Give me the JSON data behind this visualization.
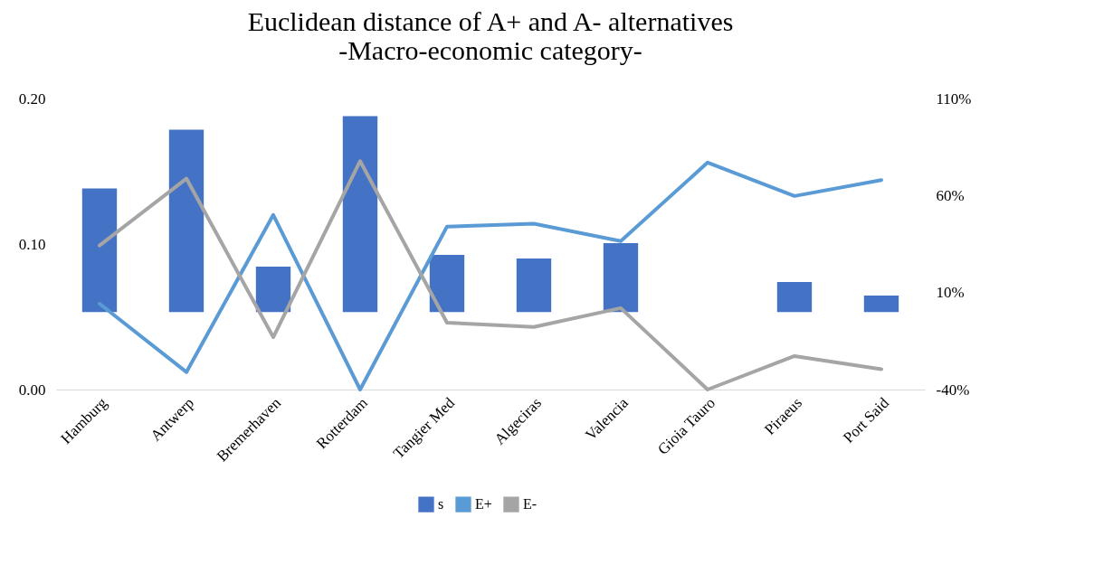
{
  "chart_data": {
    "type": "bar",
    "title": "Euclidean distance of A+ and A- alternatives",
    "subtitle": "-Macro-economic category-",
    "categories": [
      "Hamburg",
      "Antwerp",
      "Bremerhaven",
      "Rotterdam",
      "Tangier Med",
      "Algeciras",
      "Valencia",
      "Gioia Tauro",
      "Piraeus",
      "Port Said"
    ],
    "series": [
      {
        "name": "s",
        "axis": "y2",
        "color": "#4472c4",
        "values": [
          63.6,
          93.9,
          23.4,
          100.9,
          29.4,
          27.6,
          35.5,
          0,
          15.4,
          8.4
        ]
      },
      {
        "name": "E+",
        "type": "line",
        "color": "#5b9bd5",
        "values": [
          0.059,
          0.012,
          0.12,
          0.0,
          0.112,
          0.114,
          0.102,
          0.156,
          0.133,
          0.144
        ]
      },
      {
        "name": "E-",
        "type": "line",
        "color": "#a5a5a5",
        "values": [
          0.099,
          0.145,
          0.036,
          0.157,
          0.046,
          0.043,
          0.056,
          0.0,
          0.023,
          0.014
        ]
      }
    ],
    "ylim": [
      0,
      0.2
    ],
    "yticks": [
      {
        "value": 0,
        "label": "0.00"
      },
      {
        "value": 0.1,
        "label": "0.10"
      },
      {
        "value": 0.2,
        "label": "0.20"
      }
    ],
    "y2lim": [
      -40,
      110
    ],
    "y2ticks": [
      {
        "value": -40,
        "label": "-40%"
      },
      {
        "value": 10,
        "label": "10%"
      },
      {
        "value": 60,
        "label": "60%"
      },
      {
        "value": 110,
        "label": "110%"
      }
    ],
    "legend": "bottom"
  }
}
